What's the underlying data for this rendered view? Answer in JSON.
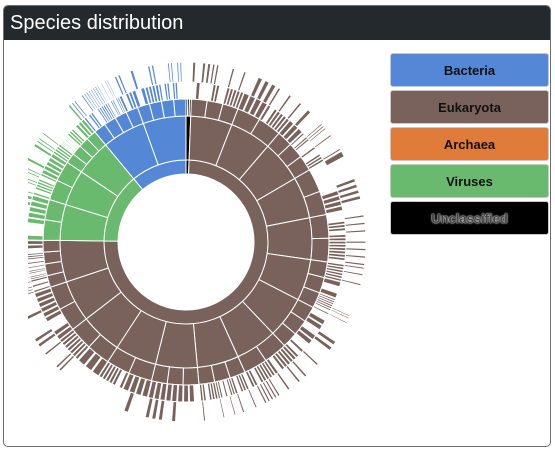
{
  "panel": {
    "title": "Species distribution"
  },
  "colors": {
    "Bacteria": "#5488d6",
    "Eukaryota": "#7a625c",
    "Archaea": "#e07b39",
    "Viruses": "#69b96f",
    "Unclassified": "#000000"
  },
  "chart_data": {
    "type": "sunburst",
    "legend_position": "right",
    "legend": [
      "Bacteria",
      "Eukaryota",
      "Archaea",
      "Viruses",
      "Unclassified"
    ],
    "top_level_shares": [
      {
        "name": "Unclassified",
        "fraction": 0.006
      },
      {
        "name": "Eukaryota",
        "fraction": 0.746
      },
      {
        "name": "Viruses",
        "fraction": 0.138
      },
      {
        "name": "Bacteria",
        "fraction": 0.11
      }
    ],
    "rings": 4,
    "labels_on_chart": false
  }
}
